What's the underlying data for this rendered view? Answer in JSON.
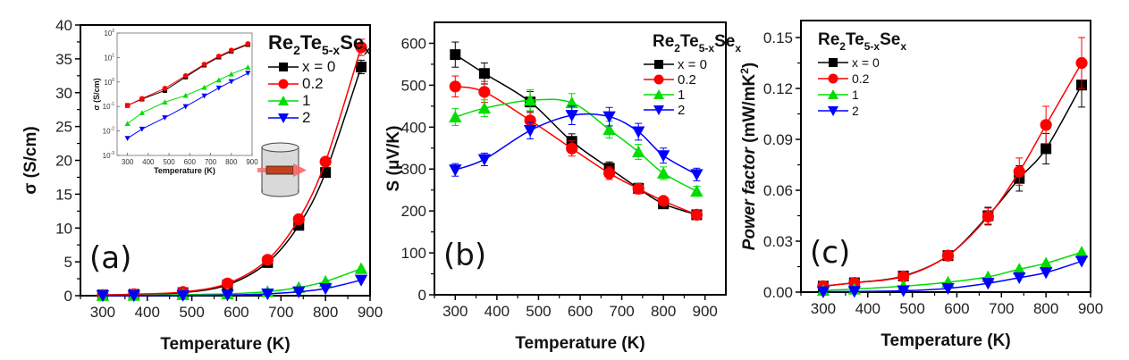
{
  "chart_data": [
    {
      "type": "line",
      "panel_label": "(a)",
      "title": "",
      "xlabel": "Temperature (K)",
      "ylabel": "σ (S/cm)",
      "xlim": [
        250,
        900
      ],
      "ylim": [
        0,
        40
      ],
      "xticks": [
        300,
        400,
        500,
        600,
        700,
        800,
        900
      ],
      "yticks": [
        0,
        5,
        10,
        15,
        20,
        25,
        30,
        35,
        40
      ],
      "legend": {
        "title_base": "Re",
        "title_sub1": "2",
        "title_mid": "Te",
        "title_sub2": "5-x",
        "title_end": "Se",
        "title_sub3": "x",
        "placement": "top-right"
      },
      "x": [
        300,
        370,
        480,
        580,
        670,
        740,
        800,
        880
      ],
      "series": [
        {
          "name": "x = 0",
          "color": "#000000",
          "marker": "square",
          "values": [
            0.11,
            0.2,
            0.45,
            1.6,
            4.9,
            10.4,
            18.2,
            33.8
          ],
          "errors": [
            0,
            0,
            0,
            0,
            0.3,
            0.3,
            0.3,
            1.0
          ]
        },
        {
          "name": "0.2",
          "color": "#ff0000",
          "marker": "circle",
          "values": [
            0.11,
            0.21,
            0.55,
            1.8,
            5.3,
            11.3,
            19.8,
            36.7
          ],
          "errors": [
            0,
            0,
            0,
            0,
            0.3,
            0.3,
            0.4,
            1.2
          ]
        },
        {
          "name": "1",
          "color": "#00dd00",
          "marker": "triangle-up",
          "values": [
            0.02,
            0.055,
            0.15,
            0.28,
            0.6,
            1.2,
            2.1,
            4.0
          ],
          "errors": [
            0,
            0,
            0,
            0,
            0,
            0,
            0,
            0
          ]
        },
        {
          "name": "2",
          "color": "#0000ff",
          "marker": "triangle-down",
          "values": [
            0.005,
            0.012,
            0.035,
            0.1,
            0.27,
            0.57,
            1.05,
            2.3
          ],
          "errors": [
            0,
            0,
            0,
            0,
            0,
            0,
            0,
            0
          ]
        }
      ],
      "inset": {
        "type": "line",
        "yscale": "log",
        "xlabel": "Temperature (K)",
        "ylabel": "σ (S/cm)",
        "xlim": [
          250,
          900
        ],
        "ylim": [
          0.001,
          100
        ],
        "xticks": [
          300,
          400,
          500,
          600,
          700,
          800,
          900
        ],
        "ytick_bases": [
          "10",
          "10",
          "10",
          "10",
          "10",
          "10"
        ],
        "ytick_exps": [
          "-3",
          "-2",
          "-1",
          "0",
          "1",
          "2"
        ]
      },
      "annotation": "sample measurement schematic: cylinder with bar sample and arrow"
    },
    {
      "type": "line",
      "panel_label": "(b)",
      "title": "",
      "xlabel": "Temperature (K)",
      "ylabel": "S (μV/K)",
      "xlim": [
        250,
        950
      ],
      "ylim": [
        0,
        650
      ],
      "xticks": [
        300,
        400,
        500,
        600,
        700,
        800,
        900
      ],
      "yticks": [
        0,
        100,
        200,
        300,
        400,
        500,
        600
      ],
      "legend": {
        "placement": "top-right"
      },
      "x": [
        300,
        370,
        480,
        580,
        670,
        740,
        800,
        880
      ],
      "series": [
        {
          "name": "x = 0",
          "color": "#000000",
          "marker": "square",
          "values": [
            573,
            528,
            460,
            366,
            302,
            254,
            217,
            191
          ],
          "errors": [
            30,
            25,
            25,
            18,
            15,
            12,
            10,
            8
          ]
        },
        {
          "name": "0.2",
          "color": "#ff0000",
          "marker": "circle",
          "values": [
            497,
            484,
            416,
            349,
            290,
            253,
            224,
            191
          ],
          "errors": [
            25,
            25,
            22,
            18,
            15,
            12,
            10,
            8
          ]
        },
        {
          "name": "1",
          "color": "#00dd00",
          "marker": "triangle-up",
          "values": [
            424,
            445,
            464,
            458,
            394,
            341,
            290,
            247
          ],
          "errors": [
            20,
            20,
            25,
            22,
            20,
            18,
            15,
            12
          ]
        },
        {
          "name": "2",
          "color": "#0000ff",
          "marker": "triangle-down",
          "values": [
            298,
            323,
            392,
            428,
            425,
            389,
            332,
            287
          ],
          "errors": [
            15,
            15,
            20,
            22,
            22,
            20,
            18,
            15
          ]
        }
      ]
    },
    {
      "type": "line",
      "panel_label": "(c)",
      "title": "",
      "xlabel": "Temperature (K)",
      "ylabel_prefix": "Power factor",
      "ylabel_unit": "(mW/mK",
      "ylabel_sup": "2",
      "ylabel_close": ")",
      "xlim": [
        250,
        900
      ],
      "ylim": [
        0,
        0.16
      ],
      "xticks": [
        300,
        400,
        500,
        600,
        700,
        800,
        900
      ],
      "yticks": [
        "0.00",
        "0.03",
        "0.06",
        "0.09",
        "0.12",
        "0.15"
      ],
      "legend": {
        "placement": "top-left"
      },
      "x": [
        300,
        370,
        480,
        580,
        670,
        740,
        800,
        880
      ],
      "series": [
        {
          "name": "x = 0",
          "color": "#000000",
          "marker": "square",
          "values": [
            0.0035,
            0.0055,
            0.0095,
            0.0215,
            0.045,
            0.067,
            0.0845,
            0.122
          ],
          "errors": [
            0.001,
            0.001,
            0.001,
            0.002,
            0.005,
            0.0075,
            0.009,
            0.013
          ]
        },
        {
          "name": "0.2",
          "color": "#ff0000",
          "marker": "circle",
          "values": [
            0.0035,
            0.0055,
            0.0092,
            0.0215,
            0.0445,
            0.071,
            0.0985,
            0.135
          ],
          "errors": [
            0.001,
            0.001,
            0.001,
            0.002,
            0.005,
            0.008,
            0.011,
            0.015
          ]
        },
        {
          "name": "1",
          "color": "#00dd00",
          "marker": "triangle-up",
          "values": [
            0.001,
            0.0018,
            0.0035,
            0.0058,
            0.009,
            0.0135,
            0.017,
            0.0235
          ],
          "errors": [
            0,
            0,
            0,
            0,
            0,
            0,
            0,
            0
          ]
        },
        {
          "name": "2",
          "color": "#0000ff",
          "marker": "triangle-down",
          "values": [
            0.0002,
            0.0004,
            0.0008,
            0.0022,
            0.0052,
            0.0085,
            0.0115,
            0.0182
          ],
          "errors": [
            0,
            0,
            0,
            0,
            0,
            0,
            0,
            0
          ]
        }
      ]
    }
  ],
  "inset_data": {
    "x": [
      300,
      370,
      480,
      580,
      670,
      740,
      800,
      880
    ],
    "series": [
      {
        "name": "x = 0",
        "color": "#000000",
        "values": [
          0.11,
          0.2,
          0.45,
          1.6,
          4.9,
          10.4,
          18.2,
          33.8
        ]
      },
      {
        "name": "0.2",
        "color": "#ff0000",
        "values": [
          0.11,
          0.21,
          0.55,
          1.8,
          5.3,
          11.3,
          19.8,
          36.7
        ]
      },
      {
        "name": "1",
        "color": "#00dd00",
        "values": [
          0.02,
          0.055,
          0.15,
          0.28,
          0.6,
          1.2,
          2.1,
          4.0
        ]
      },
      {
        "name": "2",
        "color": "#0000ff",
        "values": [
          0.005,
          0.012,
          0.035,
          0.1,
          0.27,
          0.57,
          1.05,
          2.3
        ]
      }
    ]
  }
}
